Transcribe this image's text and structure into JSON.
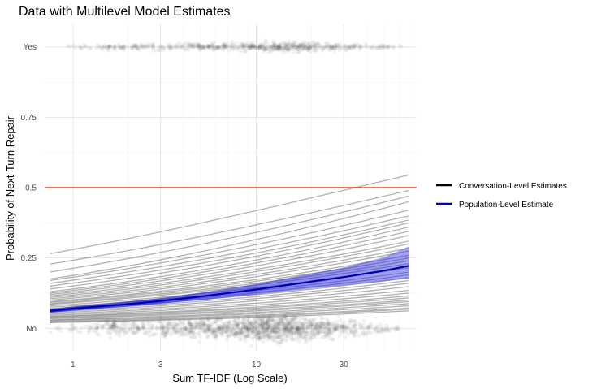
{
  "chart_data": {
    "type": "line",
    "title": "Data with Multilevel Model Estimates",
    "xlabel": "Sum TF-IDF (Log Scale)",
    "ylabel": "Probability of Next-Turn Repair",
    "x_scale": "log",
    "xlim": [
      0.7,
      75
    ],
    "ylim": [
      -0.08,
      1.08
    ],
    "x_ticks": [
      1,
      3,
      10,
      30
    ],
    "x_tick_labels": [
      "1",
      "3",
      "10",
      "30"
    ],
    "y_ticks": [
      0,
      0.25,
      0.5,
      0.75,
      1
    ],
    "y_tick_labels": [
      "No",
      "0.25",
      "0.5",
      "0.75",
      "Yes"
    ],
    "grid": true,
    "reference_line": {
      "y": 0.5,
      "color": "#ee2200"
    },
    "legend": {
      "placement": "right",
      "items": [
        {
          "label": "Conversation-Level Estimates",
          "color": "#000000"
        },
        {
          "label": "Population-Level Estimate",
          "color": "#0000aa"
        }
      ]
    },
    "population_estimate": {
      "color": "#0000aa",
      "band_color": "#3333ee",
      "x": [
        0.75,
        1,
        2,
        3,
        5,
        10,
        20,
        30,
        50,
        68
      ],
      "y": [
        0.062,
        0.07,
        0.086,
        0.097,
        0.113,
        0.138,
        0.166,
        0.182,
        0.205,
        0.222
      ],
      "lower": [
        0.056,
        0.063,
        0.078,
        0.088,
        0.101,
        0.121,
        0.142,
        0.153,
        0.168,
        0.178
      ],
      "upper": [
        0.068,
        0.077,
        0.095,
        0.107,
        0.126,
        0.157,
        0.194,
        0.215,
        0.252,
        0.29
      ]
    },
    "conversation_estimates": {
      "color": "#555555",
      "x_range": [
        0.75,
        68
      ],
      "start_end": [
        [
          0.265,
          0.545
        ],
        [
          0.228,
          0.49
        ],
        [
          0.2,
          0.47
        ],
        [
          0.175,
          0.45
        ],
        [
          0.17,
          0.42
        ],
        [
          0.16,
          0.4
        ],
        [
          0.15,
          0.385
        ],
        [
          0.14,
          0.375
        ],
        [
          0.13,
          0.36
        ],
        [
          0.125,
          0.345
        ],
        [
          0.12,
          0.33
        ],
        [
          0.115,
          0.31
        ],
        [
          0.11,
          0.3
        ],
        [
          0.105,
          0.285
        ],
        [
          0.1,
          0.275
        ],
        [
          0.095,
          0.26
        ],
        [
          0.092,
          0.25
        ],
        [
          0.088,
          0.24
        ],
        [
          0.085,
          0.23
        ],
        [
          0.08,
          0.215
        ],
        [
          0.075,
          0.2
        ],
        [
          0.07,
          0.19
        ],
        [
          0.066,
          0.18
        ],
        [
          0.062,
          0.17
        ],
        [
          0.058,
          0.16
        ],
        [
          0.054,
          0.148
        ],
        [
          0.05,
          0.135
        ],
        [
          0.046,
          0.125
        ],
        [
          0.042,
          0.115
        ],
        [
          0.04,
          0.108
        ],
        [
          0.037,
          0.1
        ],
        [
          0.034,
          0.095
        ],
        [
          0.03,
          0.088
        ],
        [
          0.028,
          0.08
        ],
        [
          0.025,
          0.072
        ],
        [
          0.022,
          0.068
        ],
        [
          0.02,
          0.062
        ]
      ]
    },
    "observations": {
      "no_density": [
        [
          0.75,
          0.2
        ],
        [
          1.2,
          0.5
        ],
        [
          1.6,
          2.0
        ],
        [
          1.8,
          1.3
        ],
        [
          2.5,
          1.2
        ],
        [
          4,
          2.0
        ],
        [
          7,
          3.5
        ],
        [
          10,
          4.8
        ],
        [
          14,
          5.4
        ],
        [
          20,
          4.0
        ],
        [
          30,
          2.0
        ],
        [
          45,
          0.7
        ],
        [
          65,
          0.2
        ]
      ],
      "yes_density": [
        [
          0.9,
          0.1
        ],
        [
          1.2,
          0.5
        ],
        [
          1.6,
          1.2
        ],
        [
          1.8,
          1.0
        ],
        [
          2.5,
          1.0
        ],
        [
          4,
          1.2
        ],
        [
          7,
          1.5
        ],
        [
          10,
          2.0
        ],
        [
          14,
          2.7
        ],
        [
          20,
          2.0
        ],
        [
          30,
          1.2
        ],
        [
          45,
          0.5
        ],
        [
          65,
          0.2
        ]
      ]
    }
  }
}
